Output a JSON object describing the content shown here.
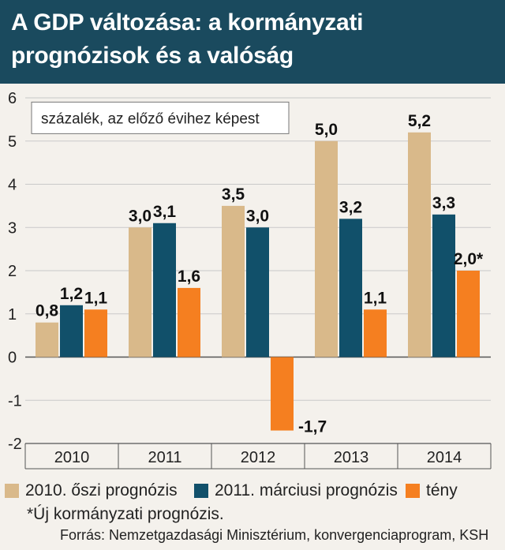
{
  "title": {
    "line1": "A GDP változása: a kormányzati",
    "line2": "prognózisok és a valóság"
  },
  "colors": {
    "header_bg": "#1a4a5e",
    "series_2010": "#d9b98a",
    "series_2011": "#11506a",
    "series_teny": "#f57f20"
  },
  "chart_data": {
    "type": "bar",
    "title": "A GDP változása: a kormányzati prognózisok és a valóság",
    "unit_label": "százalék, az előző évihez képest",
    "categories": [
      "2010",
      "2011",
      "2012",
      "2013",
      "2014"
    ],
    "ylim": [
      -2,
      6
    ],
    "yticks": [
      "6",
      "5",
      "4",
      "3",
      "2",
      "1",
      "0",
      "-1",
      "-2"
    ],
    "grid": true,
    "legend_position": "bottom",
    "series": [
      {
        "name": "2010. őszi prognózis",
        "color": "#d9b98a",
        "values": [
          0.8,
          3.0,
          3.5,
          5.0,
          5.2
        ],
        "labels": [
          "0,8",
          "3,0",
          "3,5",
          "5,0",
          "5,2"
        ]
      },
      {
        "name": "2011. márciusi prognózis",
        "color": "#11506a",
        "values": [
          1.2,
          3.1,
          3.0,
          3.2,
          3.3
        ],
        "labels": [
          "1,2",
          "3,1",
          "3,0",
          "3,2",
          "3,3"
        ]
      },
      {
        "name": "tény",
        "color": "#f57f20",
        "values": [
          1.1,
          1.6,
          -1.7,
          1.1,
          2.0
        ],
        "labels": [
          "1,1",
          "1,6",
          "-1,7",
          "1,1",
          "2,0*"
        ]
      }
    ]
  },
  "legend": {
    "items": [
      "2010. őszi prognózis",
      "2011. márciusi prognózis",
      "tény"
    ]
  },
  "footnote": "*Új kormányzati prognózis.",
  "source": "Forrás: Nemzetgazdasági Minisztérium, konvergenciaprogram, KSH"
}
